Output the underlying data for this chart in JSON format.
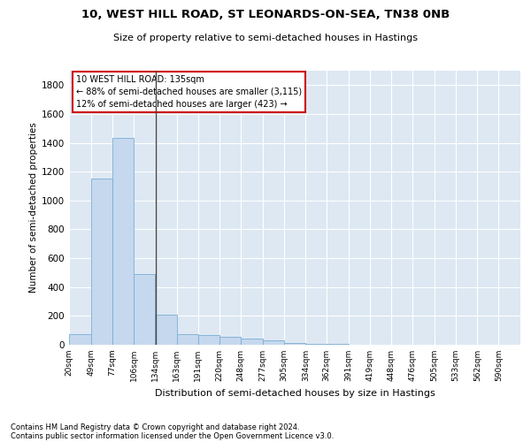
{
  "title_line1": "10, WEST HILL ROAD, ST LEONARDS-ON-SEA, TN38 0NB",
  "title_line2": "Size of property relative to semi-detached houses in Hastings",
  "xlabel": "Distribution of semi-detached houses by size in Hastings",
  "ylabel": "Number of semi-detached properties",
  "footnote1": "Contains HM Land Registry data © Crown copyright and database right 2024.",
  "footnote2": "Contains public sector information licensed under the Open Government Licence v3.0.",
  "annotation_title": "10 WEST HILL ROAD: 135sqm",
  "annotation_line1": "← 88% of semi-detached houses are smaller (3,115)",
  "annotation_line2": "12% of semi-detached houses are larger (423) →",
  "property_size": 135,
  "bar_edges": [
    20,
    49,
    77,
    106,
    134,
    163,
    191,
    220,
    248,
    277,
    305,
    334,
    362,
    391,
    419,
    448,
    476,
    505,
    533,
    562,
    590
  ],
  "bar_heights": [
    75,
    1150,
    1435,
    490,
    210,
    75,
    65,
    55,
    40,
    28,
    15,
    5,
    5,
    0,
    0,
    0,
    0,
    0,
    0,
    0
  ],
  "bar_color": "#c5d8ee",
  "bar_edge_color": "#7aadd4",
  "property_line_color": "#444444",
  "annotation_box_facecolor": "#ffffff",
  "annotation_box_edgecolor": "#cc0000",
  "background_color": "#dde8f3",
  "grid_color": "#ffffff",
  "ylim": [
    0,
    1900
  ],
  "yticks": [
    0,
    200,
    400,
    600,
    800,
    1000,
    1200,
    1400,
    1600,
    1800
  ]
}
